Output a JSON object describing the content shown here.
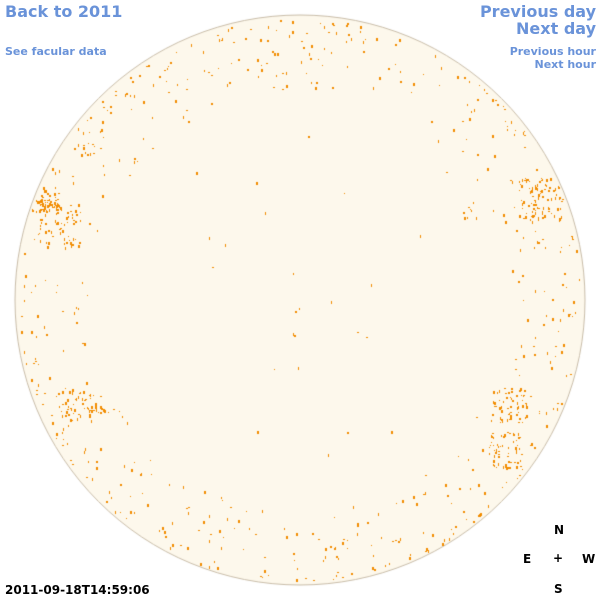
{
  "nav": {
    "back": "Back to 2011",
    "facular": "See facular data",
    "previous_day": "Previous day",
    "next_day": "Next day",
    "previous_hour": "Previous hour",
    "next_hour": "Next hour"
  },
  "compass": {
    "north": "N",
    "east": "E",
    "center": "+",
    "west": "W",
    "south": "S"
  },
  "timestamp": "2011-09-18T14:59:06",
  "colors": {
    "disk_fill": "#fdf8ec",
    "disk_border": "#c8bca8",
    "facula": "#f28c00",
    "link": "#6a93d9"
  }
}
